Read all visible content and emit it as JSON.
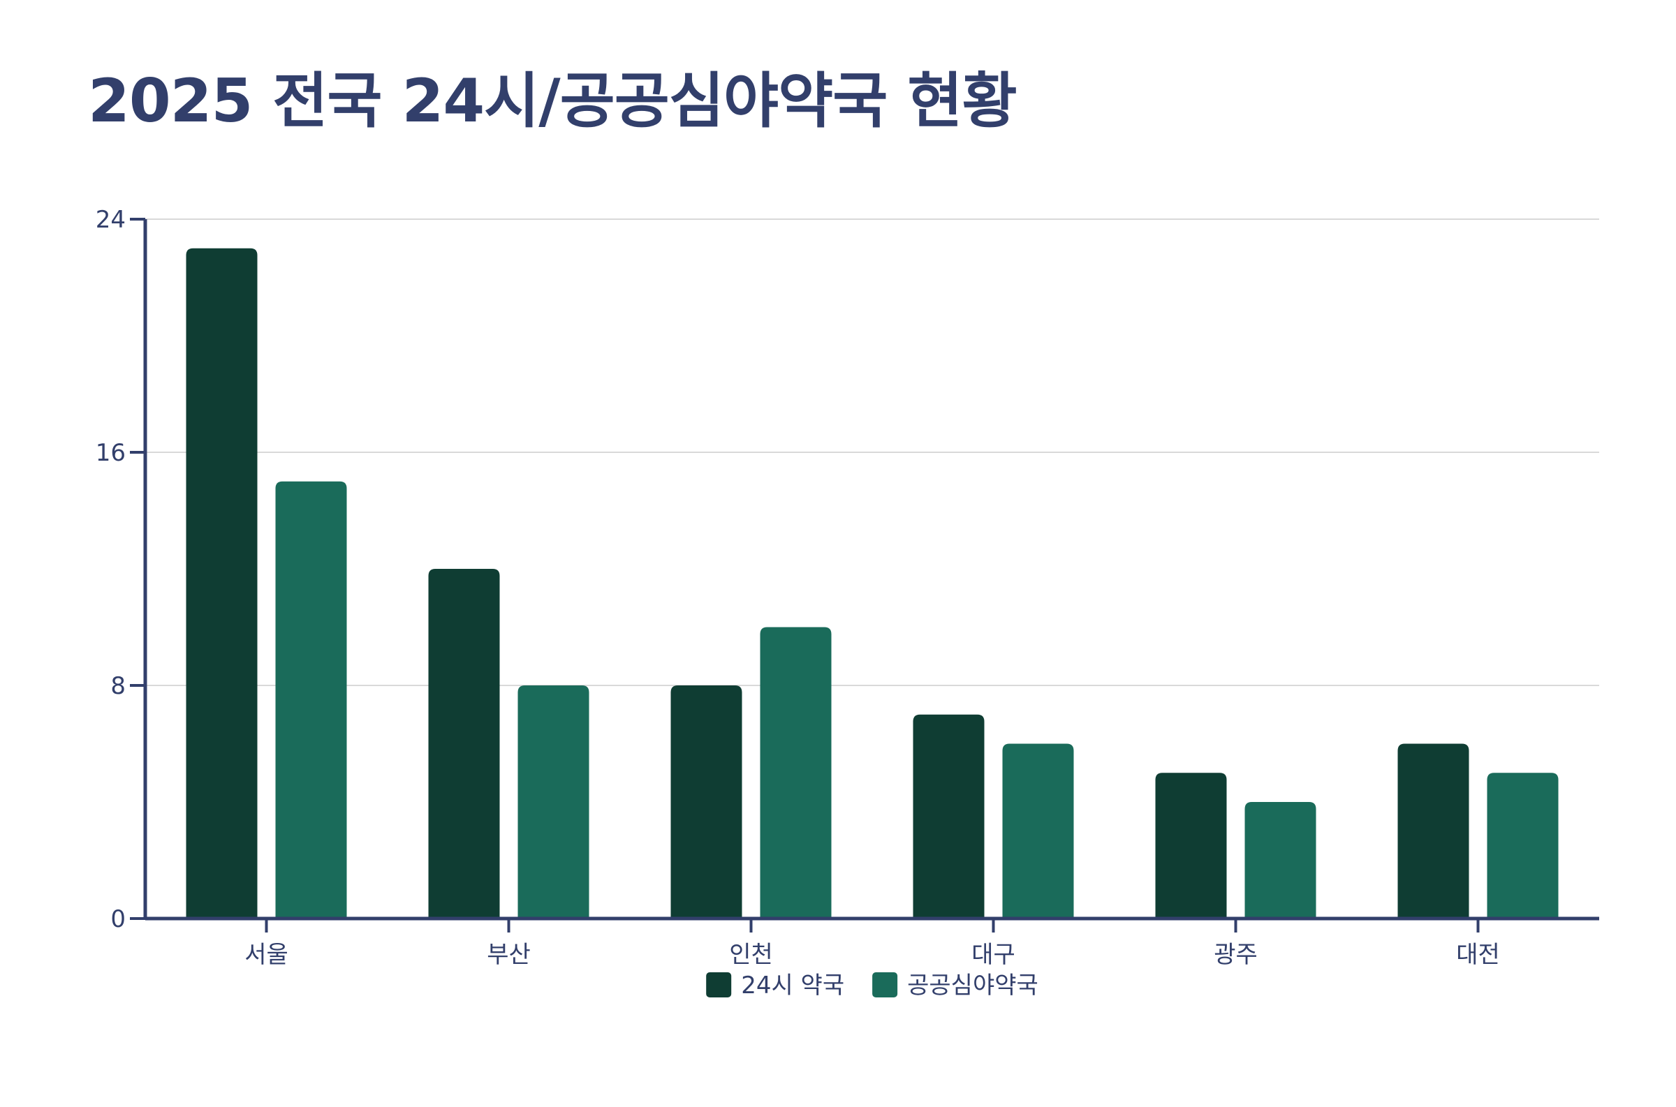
{
  "chart_data": {
    "type": "bar",
    "title": "2025 전국 24시/공공심야약국 현황",
    "xlabel": "",
    "ylabel": "",
    "categories": [
      "서울",
      "부산",
      "인천",
      "대구",
      "광주",
      "대전"
    ],
    "series": [
      {
        "name": "24시 약국",
        "color": "#0f3d33",
        "values": [
          23,
          12,
          8,
          7,
          5,
          6
        ]
      },
      {
        "name": "공공심야약국",
        "color": "#1a6b5a",
        "values": [
          15,
          8,
          10,
          6,
          4,
          5
        ]
      }
    ],
    "ylim": [
      0,
      24
    ],
    "yticks": [
      0,
      8,
      16,
      24
    ],
    "grid": true,
    "legend_position": "bottom-center",
    "colors": {
      "title": "#323f6b",
      "axis": "#323f6b",
      "text": "#323f6b",
      "grid": "#d9d9d9"
    }
  }
}
